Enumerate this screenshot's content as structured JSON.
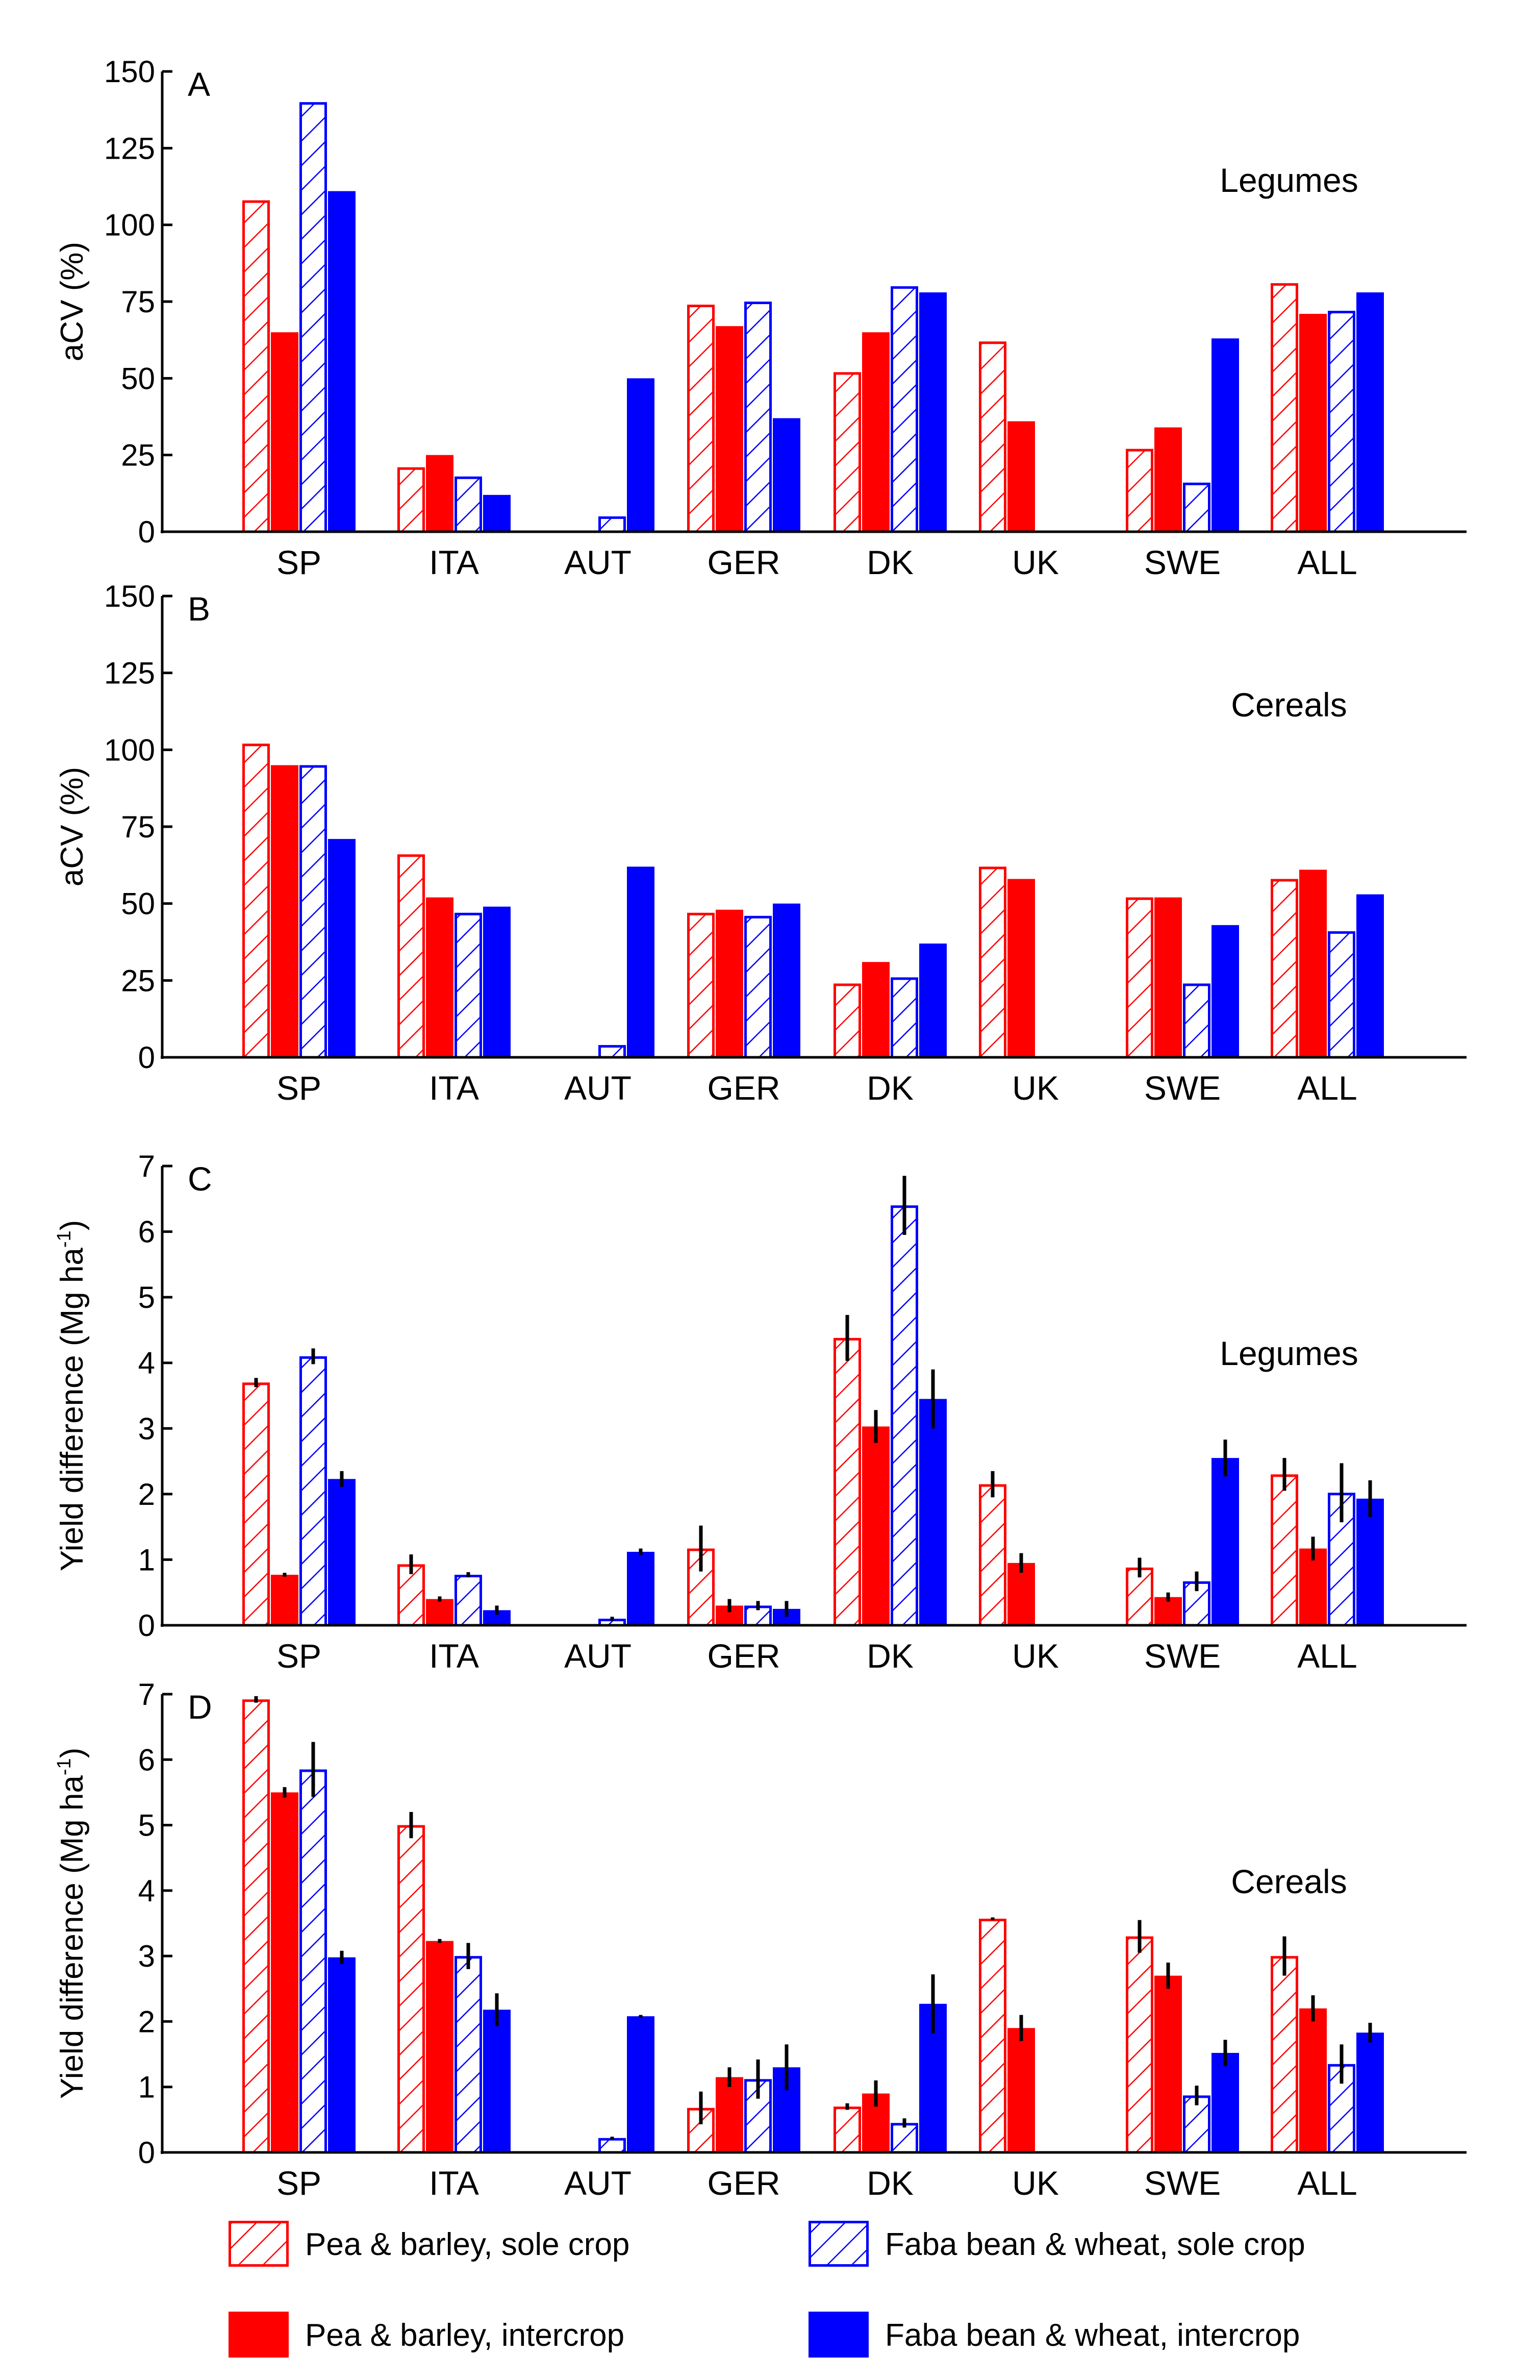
{
  "colors": {
    "red": "#ff0000",
    "blue": "#0000ff",
    "axis": "#000000"
  },
  "legend": [
    {
      "label": "Pea & barley, sole crop",
      "color": "#ff0000",
      "style": "hatched"
    },
    {
      "label": "Pea & barley, intercrop",
      "color": "#ff0000",
      "style": "solid"
    },
    {
      "label": "Faba bean & wheat, sole crop",
      "color": "#0000ff",
      "style": "hatched"
    },
    {
      "label": "Faba bean & wheat, intercrop",
      "color": "#0000ff",
      "style": "solid"
    }
  ],
  "chart_data": [
    {
      "type": "bar",
      "panel": "A",
      "annotation": "Legumes",
      "ylabel": "aCV (%)",
      "ylim": [
        0,
        150
      ],
      "yticks": [
        0,
        25,
        50,
        75,
        100,
        125,
        150
      ],
      "categories": [
        "SP",
        "ITA",
        "AUT",
        "GER",
        "DK",
        "UK",
        "SWE",
        "ALL"
      ],
      "series": [
        {
          "name": "Pea & barley, sole crop",
          "values": [
            108,
            21,
            null,
            74,
            52,
            62,
            27,
            81
          ]
        },
        {
          "name": "Pea & barley, intercrop",
          "values": [
            65,
            25,
            null,
            67,
            65,
            36,
            34,
            71
          ]
        },
        {
          "name": "Faba bean & wheat, sole crop",
          "values": [
            140,
            18,
            5,
            75,
            80,
            null,
            16,
            72
          ]
        },
        {
          "name": "Faba bean & wheat, intercrop",
          "values": [
            111,
            12,
            50,
            37,
            78,
            null,
            63,
            78
          ]
        }
      ]
    },
    {
      "type": "bar",
      "panel": "B",
      "annotation": "Cereals",
      "ylabel": "aCV (%)",
      "ylim": [
        0,
        150
      ],
      "yticks": [
        0,
        25,
        50,
        75,
        100,
        125,
        150
      ],
      "categories": [
        "SP",
        "ITA",
        "AUT",
        "GER",
        "DK",
        "UK",
        "SWE",
        "ALL"
      ],
      "series": [
        {
          "name": "Pea & barley, sole crop",
          "values": [
            102,
            66,
            null,
            47,
            24,
            62,
            52,
            58
          ]
        },
        {
          "name": "Pea & barley, intercrop",
          "values": [
            95,
            52,
            null,
            48,
            31,
            58,
            52,
            61
          ]
        },
        {
          "name": "Faba bean & wheat, sole crop",
          "values": [
            95,
            47,
            4,
            46,
            26,
            null,
            24,
            41
          ]
        },
        {
          "name": "Faba bean & wheat, intercrop",
          "values": [
            71,
            49,
            62,
            50,
            37,
            null,
            43,
            53
          ]
        }
      ]
    },
    {
      "type": "bar",
      "panel": "C",
      "annotation": "Legumes",
      "ylabel": "Yield difference (Mg ha",
      "ylabel_sup": "-1",
      "ylabel_end": ")",
      "ylim": [
        0,
        7
      ],
      "yticks": [
        0,
        1,
        2,
        3,
        4,
        5,
        6,
        7
      ],
      "categories": [
        "SP",
        "ITA",
        "AUT",
        "GER",
        "DK",
        "UK",
        "SWE",
        "ALL"
      ],
      "series": [
        {
          "name": "Pea & barley, sole crop",
          "values": [
            3.7,
            0.93,
            null,
            1.17,
            4.38,
            2.15,
            0.88,
            2.3
          ],
          "errors": [
            0.07,
            0.15,
            null,
            0.35,
            0.35,
            0.2,
            0.15,
            0.25
          ]
        },
        {
          "name": "Pea & barley, intercrop",
          "values": [
            0.77,
            0.4,
            null,
            0.3,
            3.03,
            0.95,
            0.43,
            1.17
          ],
          "errors": [
            0.03,
            0.04,
            null,
            0.1,
            0.25,
            0.15,
            0.07,
            0.18
          ]
        },
        {
          "name": "Faba bean & wheat, sole crop",
          "values": [
            4.1,
            0.77,
            0.1,
            0.3,
            6.4,
            null,
            0.67,
            2.02
          ],
          "errors": [
            0.12,
            0.04,
            0.03,
            0.07,
            0.45,
            null,
            0.15,
            0.45
          ]
        },
        {
          "name": "Faba bean & wheat, intercrop",
          "values": [
            2.23,
            0.23,
            1.12,
            0.25,
            3.45,
            null,
            2.55,
            1.93
          ],
          "errors": [
            0.12,
            0.07,
            0.05,
            0.12,
            0.45,
            null,
            0.28,
            0.28
          ]
        }
      ]
    },
    {
      "type": "bar",
      "panel": "D",
      "annotation": "Cereals",
      "ylabel": "Yield difference (Mg ha",
      "ylabel_sup": "-1",
      "ylabel_end": ")",
      "ylim": [
        0,
        7
      ],
      "yticks": [
        0,
        1,
        2,
        3,
        4,
        5,
        6,
        7
      ],
      "categories": [
        "SP",
        "ITA",
        "AUT",
        "GER",
        "DK",
        "UK",
        "SWE",
        "ALL"
      ],
      "series": [
        {
          "name": "Pea & barley, sole crop",
          "values": [
            6.92,
            5.0,
            null,
            0.68,
            0.7,
            3.57,
            3.3,
            3.0
          ],
          "errors": [
            0.05,
            0.2,
            null,
            0.25,
            0.05,
            0.02,
            0.25,
            0.3
          ]
        },
        {
          "name": "Pea & barley, intercrop",
          "values": [
            5.5,
            3.23,
            null,
            1.15,
            0.9,
            1.9,
            2.7,
            2.2
          ],
          "errors": [
            0.08,
            0.03,
            null,
            0.15,
            0.2,
            0.2,
            0.2,
            0.2
          ]
        },
        {
          "name": "Faba bean & wheat, sole crop",
          "values": [
            5.85,
            3.0,
            0.22,
            1.12,
            0.45,
            null,
            0.87,
            1.35
          ],
          "errors": [
            0.42,
            0.2,
            0.02,
            0.3,
            0.07,
            null,
            0.15,
            0.3
          ]
        },
        {
          "name": "Faba bean & wheat, intercrop",
          "values": [
            2.98,
            2.18,
            2.08,
            1.3,
            2.27,
            null,
            1.52,
            1.83
          ],
          "errors": [
            0.1,
            0.25,
            0.02,
            0.35,
            0.45,
            null,
            0.2,
            0.15
          ]
        }
      ]
    }
  ]
}
